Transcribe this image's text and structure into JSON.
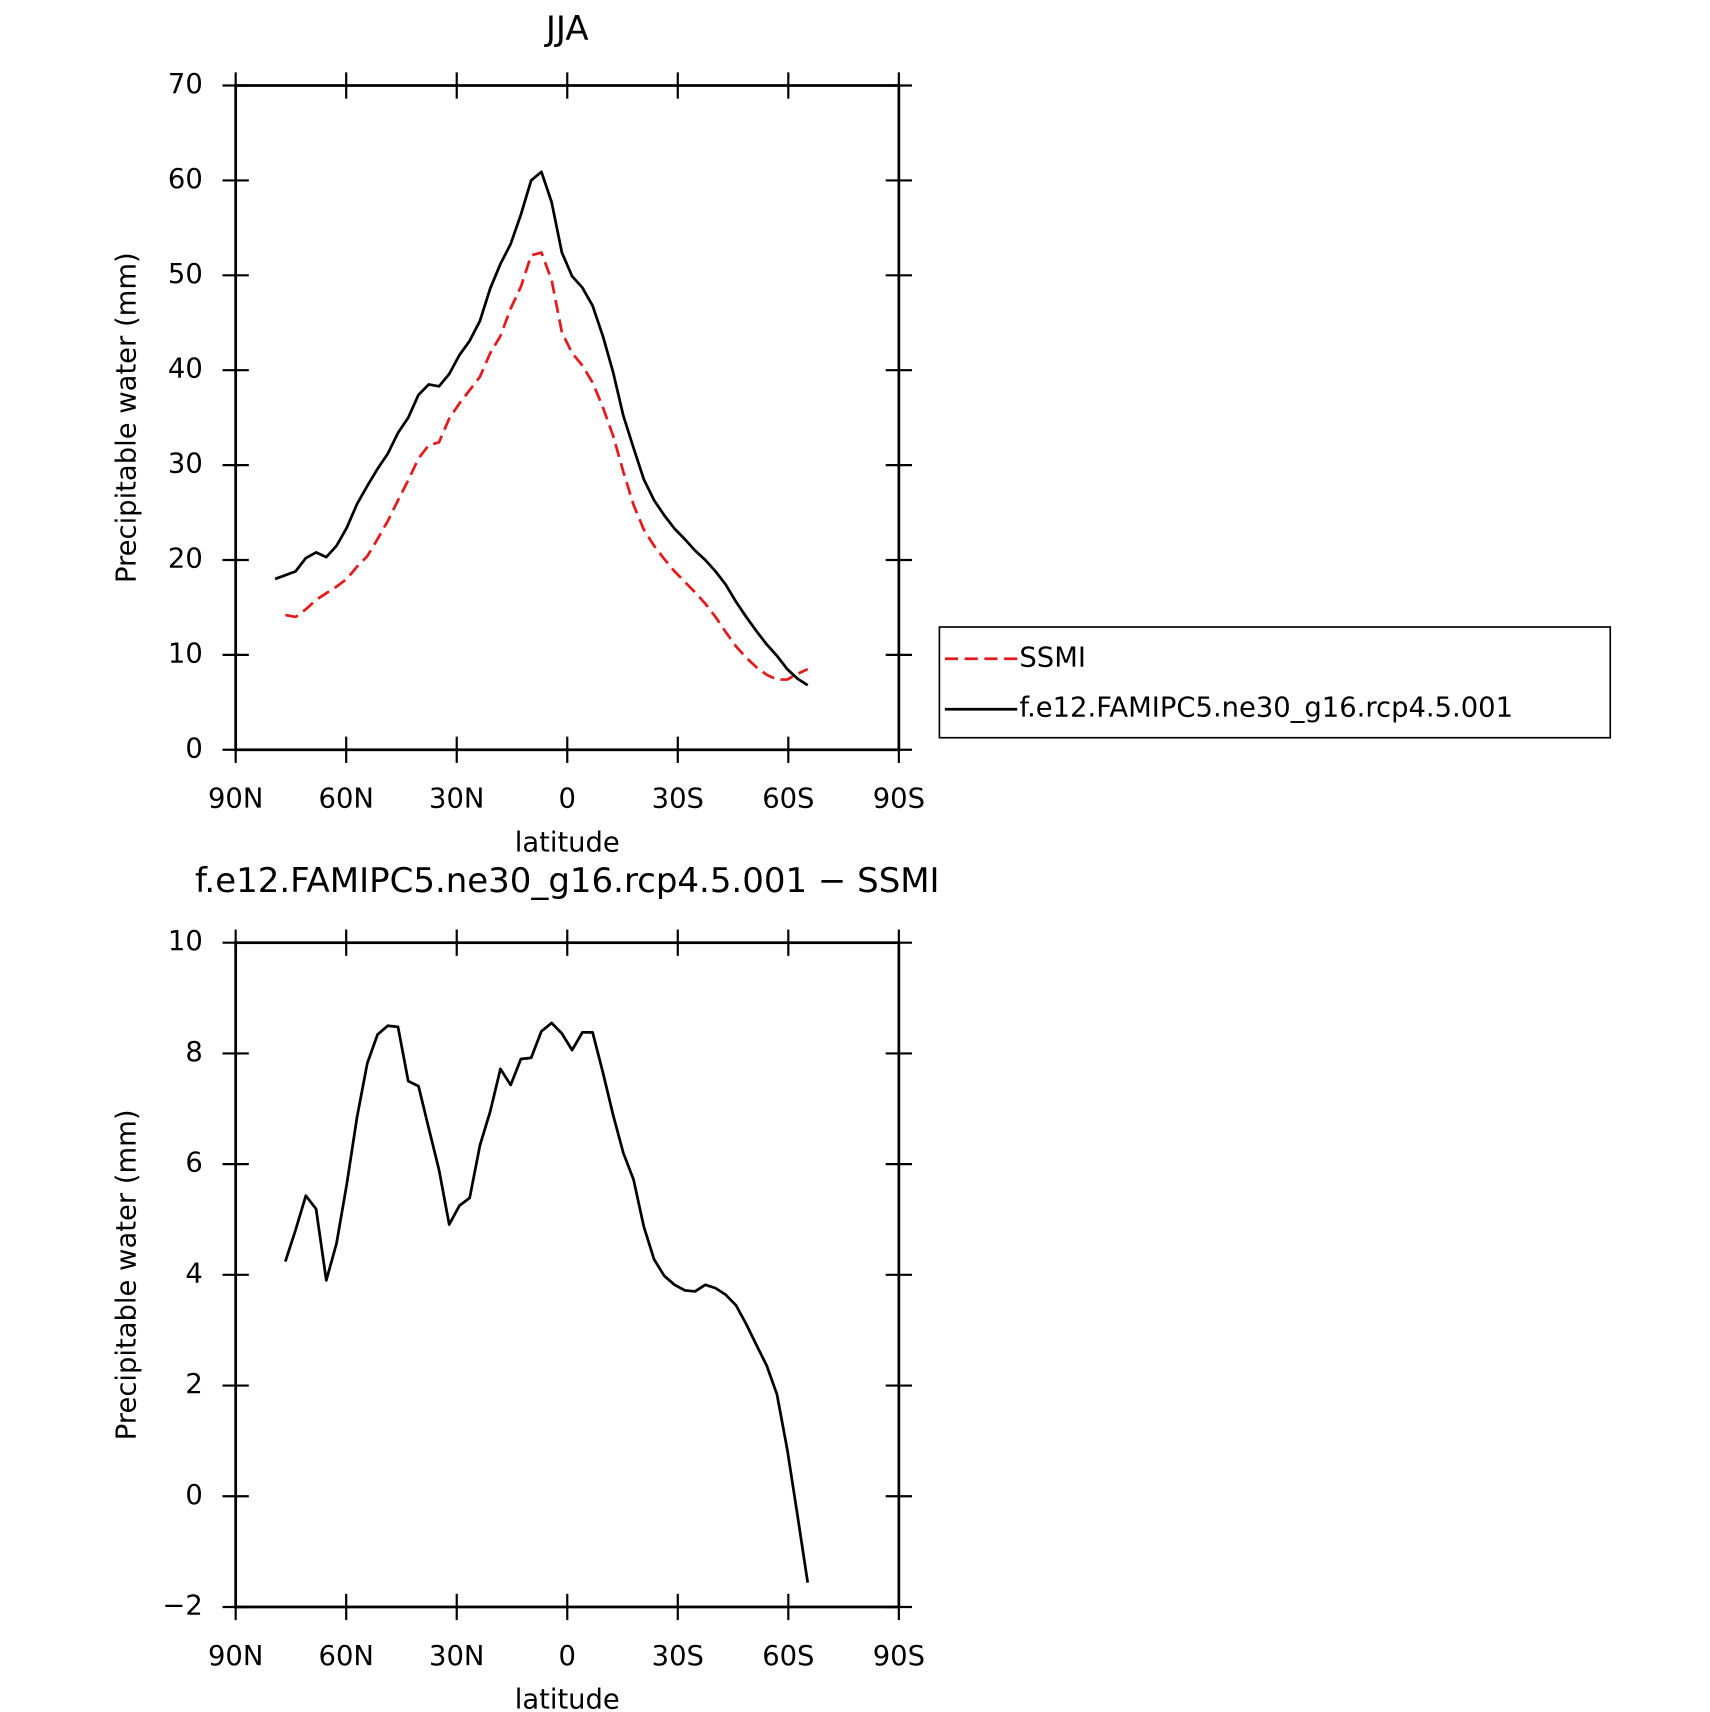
{
  "chart_data": [
    {
      "type": "line",
      "title": "JJA",
      "x_label": "latitude",
      "y_label": "Precipitable water (mm)",
      "x": [
        79.3,
        76.52,
        73.74,
        70.96,
        68.18,
        65.4,
        62.62,
        59.84,
        57.06,
        54.28,
        51.5,
        48.72,
        45.94,
        43.16,
        40.38,
        37.6,
        34.82,
        32.04,
        29.26,
        26.48,
        23.7,
        20.92,
        18.14,
        15.36,
        12.58,
        9.8,
        7.02,
        4.24,
        1.46,
        -1.32,
        -4.1,
        -6.88,
        -9.66,
        -12.44,
        -15.22,
        -18.0,
        -20.78,
        -23.56,
        -26.34,
        -29.12,
        -31.9,
        -34.68,
        -37.46,
        -40.24,
        -43.02,
        -45.8,
        -48.58,
        -51.36,
        -54.14,
        -56.92,
        -59.7,
        -62.48,
        -65.26
      ],
      "series": [
        {
          "name": "SSMI",
          "color": "#e41a1c",
          "dashed": true,
          "values": [
            null,
            14.2,
            14.0,
            14.8,
            15.8,
            16.5,
            17.2,
            18.0,
            19.3,
            20.4,
            22.2,
            24.1,
            26.3,
            28.4,
            30.7,
            32.1,
            32.4,
            34.9,
            36.5,
            37.9,
            39.3,
            41.8,
            43.6,
            46.5,
            48.8,
            52.1,
            52.4,
            49.5,
            44.0,
            41.8,
            40.5,
            38.7,
            36.1,
            33.1,
            29.3,
            25.8,
            23.2,
            21.5,
            20.1,
            18.8,
            17.7,
            16.6,
            15.4,
            14.0,
            12.4,
            10.9,
            9.7,
            8.7,
            7.9,
            7.4,
            7.4,
            8.0,
            8.5
          ]
        },
        {
          "name": "f.e12.FAMIPC5.ne30_g16.rcp4.5.001",
          "color": "#000000",
          "dashed": false,
          "values": [
            18.0,
            18.4,
            18.8,
            20.2,
            20.8,
            20.3,
            21.5,
            23.4,
            25.9,
            27.8,
            29.6,
            31.2,
            33.4,
            35.0,
            37.4,
            38.5,
            38.3,
            39.6,
            41.6,
            43.1,
            45.2,
            48.6,
            51.2,
            53.3,
            56.4,
            60.0,
            60.9,
            57.7,
            52.4,
            49.9,
            48.7,
            46.8,
            43.6,
            39.8,
            35.2,
            31.8,
            28.5,
            26.3,
            24.7,
            23.3,
            22.2,
            21.0,
            20.0,
            18.8,
            17.4,
            15.6,
            14.0,
            12.5,
            11.1,
            9.9,
            8.5,
            7.5,
            6.8
          ]
        }
      ],
      "xlim": [
        90,
        -90
      ],
      "xticks": [
        {
          "value": 90,
          "label": "90N"
        },
        {
          "value": 60,
          "label": "60N"
        },
        {
          "value": 30,
          "label": "30N"
        },
        0,
        {
          "value": -30,
          "label": "30S"
        },
        {
          "value": -60,
          "label": "60S"
        },
        {
          "value": -90,
          "label": "90S"
        }
      ],
      "ylim": [
        0,
        70
      ],
      "yticks": [
        0,
        10,
        20,
        30,
        40,
        50,
        60,
        70
      ],
      "legend_position": "right"
    },
    {
      "type": "line",
      "title": "f.e12.FAMIPC5.ne30_g16.rcp4.5.001 − SSMI",
      "x_label": "latitude",
      "y_label": "Precipitable water (mm)",
      "x": [
        79.3,
        76.52,
        73.74,
        70.96,
        68.18,
        65.4,
        62.62,
        59.84,
        57.06,
        54.28,
        51.5,
        48.72,
        45.94,
        43.16,
        40.38,
        37.6,
        34.82,
        32.04,
        29.26,
        26.48,
        23.7,
        20.92,
        18.14,
        15.36,
        12.58,
        9.8,
        7.02,
        4.24,
        1.46,
        -1.32,
        -4.1,
        -6.88,
        -9.66,
        -12.44,
        -15.22,
        -18.0,
        -20.78,
        -23.56,
        -26.34,
        -29.12,
        -31.9,
        -34.68,
        -37.46,
        -40.24,
        -43.02,
        -45.8,
        -48.58,
        -51.36,
        -54.14,
        -56.92,
        -59.7,
        -62.48,
        -65.26
      ],
      "series": [
        {
          "color": "#000000",
          "dashed": false,
          "values": [
            null,
            4.24,
            4.81,
            5.43,
            5.19,
            3.9,
            4.57,
            5.64,
            6.85,
            7.82,
            8.34,
            8.5,
            8.48,
            7.5,
            7.41,
            6.65,
            5.9,
            4.91,
            5.25,
            5.39,
            6.34,
            6.95,
            7.72,
            7.43,
            7.9,
            7.92,
            8.4,
            8.55,
            8.36,
            8.06,
            8.38,
            8.38,
            7.66,
            6.89,
            6.2,
            5.72,
            4.87,
            4.28,
            3.98,
            3.82,
            3.72,
            3.7,
            3.82,
            3.76,
            3.64,
            3.45,
            3.11,
            2.73,
            2.36,
            1.84,
            0.85,
            -0.34,
            -1.56
          ]
        }
      ],
      "xlim": [
        90,
        -90
      ],
      "xticks": [
        {
          "value": 90,
          "label": "90N"
        },
        {
          "value": 60,
          "label": "60N"
        },
        {
          "value": 30,
          "label": "30N"
        },
        0,
        {
          "value": -30,
          "label": "30S"
        },
        {
          "value": -60,
          "label": "60S"
        },
        {
          "value": -90,
          "label": "90S"
        }
      ],
      "ylim": [
        -2,
        10
      ],
      "yticks": [
        {
          "value": -2,
          "label": "−2"
        },
        0,
        2,
        4,
        6,
        8,
        10
      ]
    }
  ]
}
